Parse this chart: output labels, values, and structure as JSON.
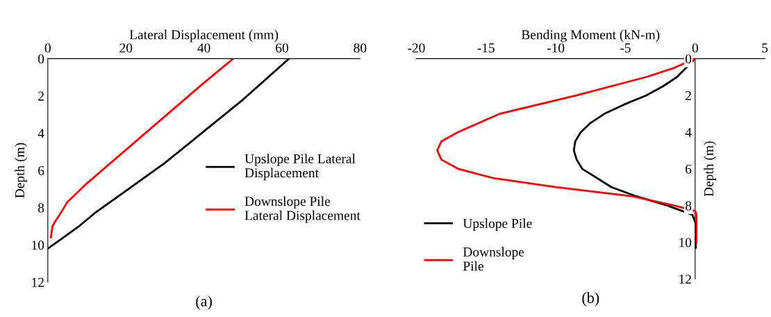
{
  "chart_data": [
    {
      "type": "line",
      "xlabel": "Lateral Displacement (mm)",
      "ylabel": "Depth (m)",
      "xlim": [
        0,
        80
      ],
      "xticks": [
        0,
        20,
        40,
        60,
        80
      ],
      "ylim": [
        12,
        0
      ],
      "yticks": [
        0,
        2,
        4,
        6,
        8,
        10,
        12
      ],
      "grid": false,
      "legend": "right",
      "annotations": [
        "(a)"
      ],
      "series": [
        {
          "name": "Upslope Pile Lateral Displacement",
          "color": "#000000",
          "x": [
            61.8,
            50,
            40,
            30,
            20,
            12,
            8,
            4,
            0
          ],
          "values": [
            0,
            2.2,
            3.9,
            5.6,
            7.1,
            8.3,
            9,
            9.6,
            10.2
          ]
        },
        {
          "name": "Downslope Pile Lateral Displacement",
          "color": "#ff0000",
          "x": [
            47.5,
            40,
            30,
            20,
            10,
            5,
            3,
            2,
            1.2,
            1,
            0.8
          ],
          "values": [
            0,
            1.3,
            3.1,
            4.9,
            6.7,
            7.7,
            8.4,
            8.7,
            9,
            9.3,
            9.6
          ]
        }
      ]
    },
    {
      "type": "line",
      "xlabel": "Bending Moment (kN-m)",
      "ylabel": "Depth (m)",
      "xlim": [
        -20,
        5
      ],
      "xticks": [
        -20,
        -15,
        -10,
        -5,
        0,
        5
      ],
      "ylim": [
        12,
        0
      ],
      "yticks": [
        0,
        2,
        4,
        6,
        8,
        10,
        12
      ],
      "grid": false,
      "legend": "left",
      "annotations": [
        "(b)"
      ],
      "series": [
        {
          "name": "Upslope Pile",
          "color": "#000000",
          "x": [
            0,
            -1.3,
            -2.3,
            -3.5,
            -5.1,
            -6.5,
            -7.5,
            -8.2,
            -8.6,
            -8.7,
            -8.5,
            -8.1,
            -6,
            -4.2,
            -2,
            -0.2,
            0.05,
            0.05
          ],
          "values": [
            0,
            1,
            1.5,
            2,
            2.5,
            3,
            3.5,
            4,
            4.5,
            5,
            5.5,
            6,
            7,
            7.5,
            8,
            8.5,
            9,
            10.3
          ]
        },
        {
          "name": "Downslope Pile",
          "color": "#ff0000",
          "x": [
            0,
            -1.5,
            -3.5,
            -8.5,
            -14,
            -17,
            -18.2,
            -18.5,
            -18.2,
            -17,
            -14.5,
            -10,
            -4.5,
            -1.5,
            0,
            0.1,
            0.1,
            0.1
          ],
          "values": [
            0,
            0.5,
            1,
            2,
            3,
            4,
            4.5,
            5,
            5.5,
            6,
            6.5,
            7,
            7.5,
            8,
            8.3,
            8.5,
            9,
            10
          ]
        }
      ]
    }
  ]
}
